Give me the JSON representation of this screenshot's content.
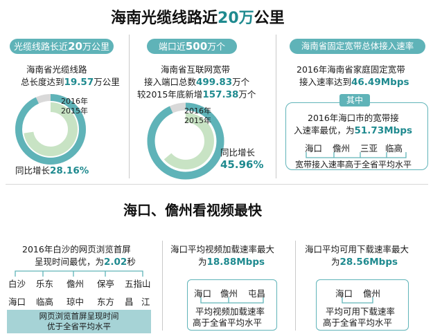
{
  "title1": {
    "part1": "海南光缆线路近",
    "highlight": "20万",
    "part2": "公里"
  },
  "col1": {
    "pill": {
      "a": "光缆线路长近",
      "b": "20",
      "c": "万公里"
    },
    "line1": "海南省光缆线路",
    "line2a": "总长度达到",
    "line2b": "19.57",
    "line2c": "万公里",
    "ring_2016": "2016年",
    "ring_2015": "2015年",
    "growth_label": "同比增长",
    "growth_value": "28.16%"
  },
  "col2": {
    "pill": {
      "a": "端口近",
      "b": "500",
      "c": "万个"
    },
    "line1": "海南省互联网宽带",
    "line2a": "接入端口总数",
    "line2b": "499.83",
    "line2c": "万个",
    "line3a": "较2015年底新增",
    "line3b": "157.38",
    "line3c": "万个",
    "ring_2016": "2016年",
    "ring_2015": "2015年",
    "growth_label": "同比增长",
    "growth_value": "45.96%"
  },
  "col3": {
    "pill": "海南省固定宽带总体接入速率",
    "line1": "2016年海南省家庭固定宽带",
    "line2a": "接入速率达到",
    "line2b": "46.49Mbps",
    "tag": "其中",
    "box_line1": "2016年海口市的宽带接",
    "box_line2a": "入速率最优，为",
    "box_line2b": "51.73Mbps",
    "cities": [
      "海口",
      "儋州",
      "三亚",
      "临高"
    ],
    "bottom": "宽带接入速率高于全省平均水平"
  },
  "title2": "海口、儋州看视频最快",
  "col4": {
    "line1": "2016年白沙的网页浏览首屏",
    "line2a": "呈现时间最优，为",
    "line2b": "2.02",
    "line2c": "秒",
    "row1": [
      "白沙",
      "乐东",
      "儋州",
      "保亭",
      "五指山"
    ],
    "row2": [
      "海口",
      "临高",
      "琼中",
      "东方",
      "昌",
      "江"
    ],
    "band_line1": "网页浏览首屏呈现时间",
    "band_line2": "优于全省平均水平"
  },
  "col5": {
    "line1": "海口平均视频加载速率最大",
    "line2a": "为",
    "line2b": "18.88Mbps",
    "cities": [
      "海口",
      "儋州",
      "屯昌"
    ],
    "bottom1": "平均视频加载速率",
    "bottom2": "高于全省平均水平"
  },
  "col6": {
    "line1": "海口平均可用下载速率最大",
    "line2a": "为",
    "line2b": "28.56Mbps",
    "cities": [
      "海口",
      "儋州"
    ],
    "bottom1": "平均可用下载速率",
    "bottom2": "高于全省平均水平"
  },
  "colors": {
    "accent": "#5fb3b8",
    "accent_dark": "#1f8a8f",
    "ring_light": "#c8e3c4",
    "ring_gray": "#d9d9d9"
  }
}
